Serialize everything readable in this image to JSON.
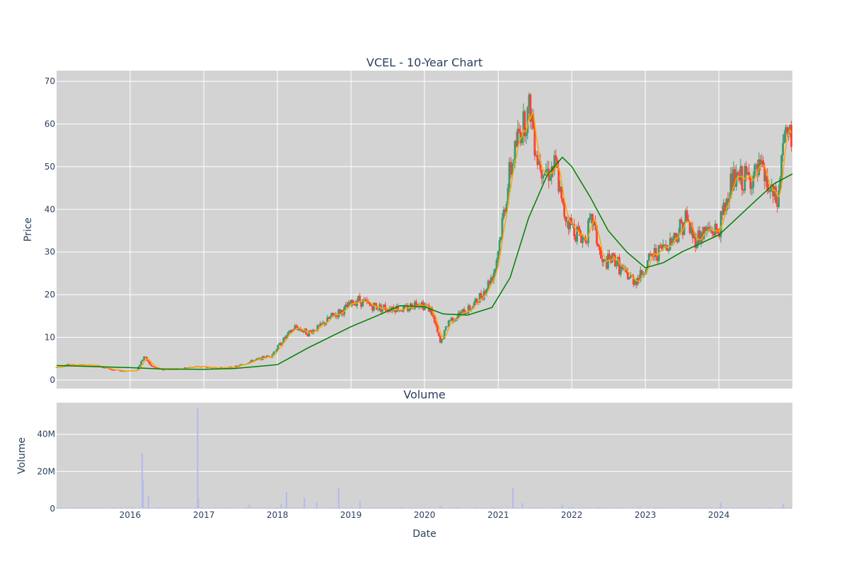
{
  "chart_data": [
    {
      "type": "candlestick",
      "title": "VCEL - 10-Year Chart",
      "ylabel": "Price",
      "ylim": [
        -2,
        72.5
      ],
      "xlim": [
        "2015-01-01",
        "2024-12-31"
      ],
      "yticks": [
        0,
        10,
        20,
        30,
        40,
        50,
        60,
        70
      ],
      "grid": true,
      "legend": "none",
      "colors": {
        "increasing": "#3d9970",
        "decreasing": "#ff4136",
        "ma_short": "#ffa500",
        "ma_long": "#008000",
        "plot_bg": "#d3d3d3",
        "grid": "#ffffff"
      },
      "price_path": [
        [
          "2015-01-01",
          3.0
        ],
        [
          "2015-03-01",
          3.6
        ],
        [
          "2015-06-01",
          3.4
        ],
        [
          "2015-08-01",
          3.3
        ],
        [
          "2015-10-01",
          2.4
        ],
        [
          "2015-12-01",
          2.1
        ],
        [
          "2016-02-01",
          2.2
        ],
        [
          "2016-03-10",
          5.5
        ],
        [
          "2016-04-15",
          3.2
        ],
        [
          "2016-06-01",
          2.4
        ],
        [
          "2016-09-01",
          2.6
        ],
        [
          "2016-12-01",
          3.2
        ],
        [
          "2017-03-01",
          2.8
        ],
        [
          "2017-06-01",
          3.0
        ],
        [
          "2017-09-01",
          4.5
        ],
        [
          "2017-12-01",
          5.8
        ],
        [
          "2018-02-01",
          9.5
        ],
        [
          "2018-04-01",
          12.5
        ],
        [
          "2018-06-01",
          11.0
        ],
        [
          "2018-08-01",
          12.5
        ],
        [
          "2018-10-01",
          15.0
        ],
        [
          "2018-12-01",
          16.5
        ],
        [
          "2019-02-01",
          19.0
        ],
        [
          "2019-04-01",
          17.5
        ],
        [
          "2019-06-01",
          17.0
        ],
        [
          "2019-08-01",
          17.0
        ],
        [
          "2019-10-01",
          16.5
        ],
        [
          "2019-12-01",
          18.5
        ],
        [
          "2020-02-01",
          16.5
        ],
        [
          "2020-03-20",
          8.5
        ],
        [
          "2020-05-01",
          14.0
        ],
        [
          "2020-07-01",
          15.5
        ],
        [
          "2020-09-01",
          17.5
        ],
        [
          "2020-11-01",
          21.5
        ],
        [
          "2020-12-15",
          26.0
        ],
        [
          "2021-01-15",
          35.0
        ],
        [
          "2021-03-01",
          49.0
        ],
        [
          "2021-04-15",
          58.0
        ],
        [
          "2021-06-10",
          64.0
        ],
        [
          "2021-07-15",
          52.0
        ],
        [
          "2021-09-01",
          49.0
        ],
        [
          "2021-10-15",
          50.0
        ],
        [
          "2021-11-15",
          40.0
        ],
        [
          "2022-01-01",
          36.0
        ],
        [
          "2022-03-01",
          33.0
        ],
        [
          "2022-04-15",
          37.5
        ],
        [
          "2022-06-01",
          27.0
        ],
        [
          "2022-08-01",
          28.5
        ],
        [
          "2022-09-15",
          25.0
        ],
        [
          "2022-11-01",
          23.5
        ],
        [
          "2022-12-01",
          24.0
        ],
        [
          "2023-02-01",
          29.0
        ],
        [
          "2023-04-01",
          31.0
        ],
        [
          "2023-06-01",
          34.0
        ],
        [
          "2023-07-20",
          38.0
        ],
        [
          "2023-09-01",
          33.0
        ],
        [
          "2023-11-01",
          35.0
        ],
        [
          "2024-01-01",
          35.0
        ],
        [
          "2024-03-01",
          46.5
        ],
        [
          "2024-05-01",
          47.0
        ],
        [
          "2024-06-15",
          47.5
        ],
        [
          "2024-08-01",
          49.0
        ],
        [
          "2024-09-01",
          45.0
        ],
        [
          "2024-10-20",
          41.0
        ],
        [
          "2024-11-15",
          57.0
        ],
        [
          "2024-12-31",
          56.0
        ]
      ],
      "ma_long_path": [
        [
          "2015-01-01",
          3.4
        ],
        [
          "2016-01-01",
          2.9
        ],
        [
          "2016-06-01",
          2.6
        ],
        [
          "2017-01-01",
          2.5
        ],
        [
          "2017-06-01",
          2.7
        ],
        [
          "2018-01-01",
          3.6
        ],
        [
          "2018-06-01",
          7.5
        ],
        [
          "2019-01-01",
          12.5
        ],
        [
          "2019-06-01",
          15.5
        ],
        [
          "2019-09-01",
          17.4
        ],
        [
          "2020-01-01",
          17.2
        ],
        [
          "2020-04-01",
          15.5
        ],
        [
          "2020-08-01",
          15.2
        ],
        [
          "2020-12-01",
          17.0
        ],
        [
          "2021-03-01",
          24.0
        ],
        [
          "2021-06-01",
          38.0
        ],
        [
          "2021-09-01",
          48.0
        ],
        [
          "2021-11-15",
          52.2
        ],
        [
          "2022-01-01",
          50.0
        ],
        [
          "2022-04-01",
          43.0
        ],
        [
          "2022-07-01",
          35.0
        ],
        [
          "2022-10-01",
          30.0
        ],
        [
          "2023-01-01",
          26.3
        ],
        [
          "2023-04-01",
          27.5
        ],
        [
          "2023-07-01",
          30.0
        ],
        [
          "2024-01-01",
          34.0
        ],
        [
          "2024-04-01",
          38.0
        ],
        [
          "2024-07-01",
          42.0
        ],
        [
          "2024-10-01",
          46.0
        ],
        [
          "2024-12-31",
          48.3
        ]
      ]
    },
    {
      "type": "bar",
      "title": "Volume",
      "xlabel": "Date",
      "ylabel": "Volume",
      "ylim": [
        0,
        57000000
      ],
      "yticks": [
        0,
        20000000,
        40000000
      ],
      "ytick_labels": [
        "0",
        "20M",
        "40M"
      ],
      "xticks": [
        "2016-01-01",
        "2017-01-01",
        "2018-01-01",
        "2019-01-01",
        "2020-01-01",
        "2021-01-01",
        "2022-01-01",
        "2023-01-01",
        "2024-01-01"
      ],
      "xtick_labels": [
        "2016",
        "2017",
        "2018",
        "2019",
        "2020",
        "2021",
        "2022",
        "2023",
        "2024"
      ],
      "grid": true,
      "colors": {
        "bar": "#b4b9ed",
        "plot_bg": "#d3d3d3"
      },
      "baseline": 400000,
      "spikes": [
        [
          "2016-03-01",
          30000000
        ],
        [
          "2016-03-05",
          15000000
        ],
        [
          "2016-04-01",
          7000000
        ],
        [
          "2016-12-01",
          54000000
        ],
        [
          "2016-12-05",
          6000000
        ],
        [
          "2017-08-15",
          2000000
        ],
        [
          "2018-01-20",
          2500000
        ],
        [
          "2018-02-15",
          9000000
        ],
        [
          "2018-05-15",
          6000000
        ],
        [
          "2018-07-15",
          3500000
        ],
        [
          "2018-11-01",
          11000000
        ],
        [
          "2019-02-15",
          4000000
        ],
        [
          "2020-03-20",
          1500000
        ],
        [
          "2021-03-15",
          11000000
        ],
        [
          "2021-05-01",
          3000000
        ],
        [
          "2021-11-15",
          2000000
        ],
        [
          "2024-01-10",
          3000000
        ],
        [
          "2024-11-15",
          2500000
        ]
      ]
    }
  ]
}
